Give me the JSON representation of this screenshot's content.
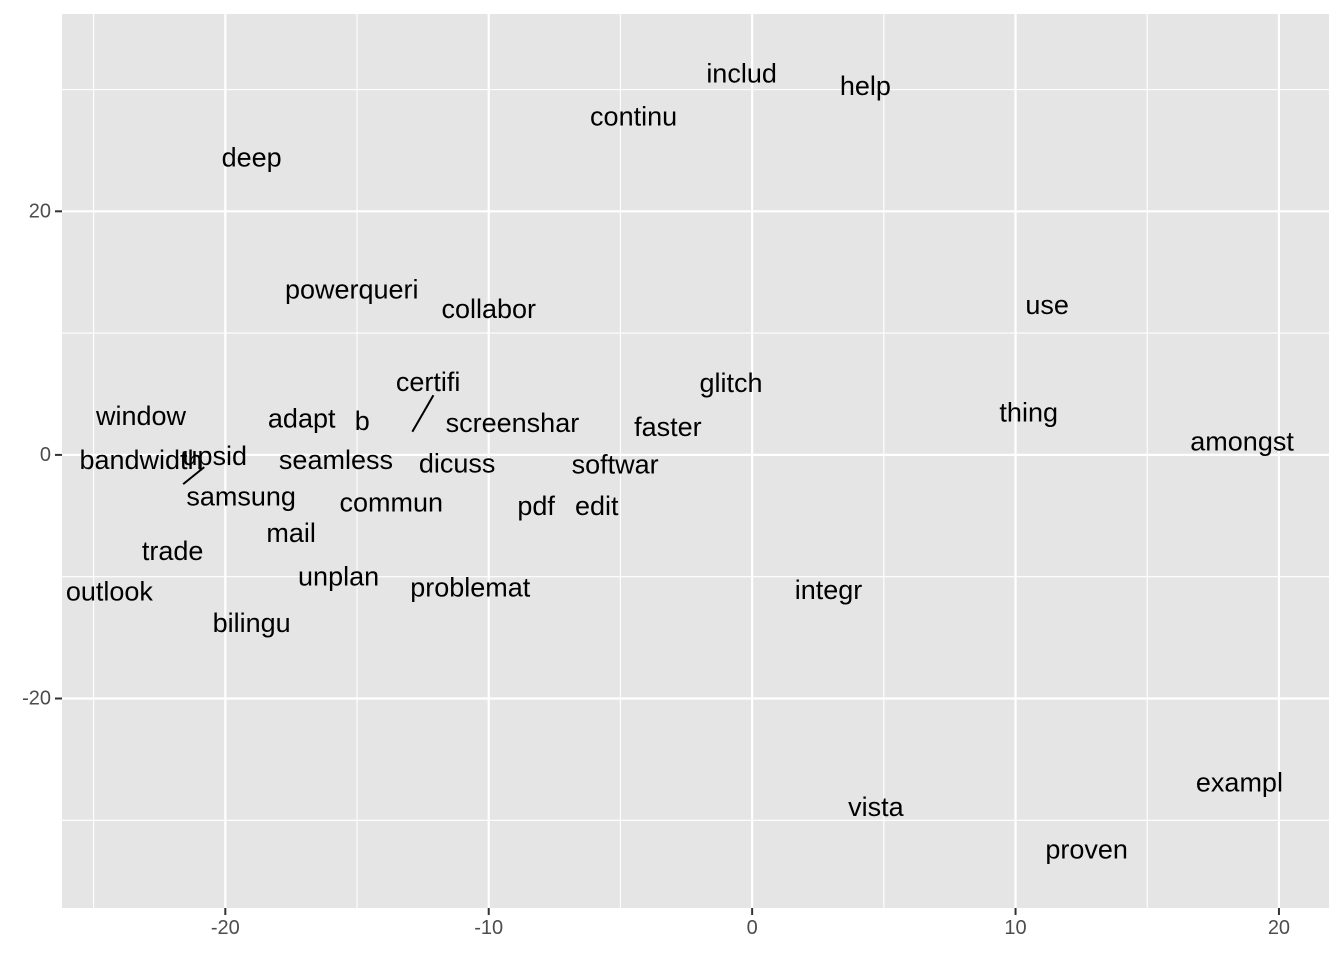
{
  "chart_data": {
    "type": "scatter",
    "title": "",
    "xlabel": "",
    "ylabel": "",
    "xlim": [
      -26.2,
      21.9
    ],
    "ylim": [
      -37.2,
      36.2
    ],
    "x_ticks": [
      -20,
      -10,
      0,
      10,
      20
    ],
    "x_tick_labels": [
      "-20",
      "-10",
      "0",
      "10",
      "20"
    ],
    "y_ticks": [
      -20,
      0,
      20
    ],
    "y_tick_labels": [
      "-20",
      "0",
      "20"
    ],
    "x_minor_ticks": [
      -25,
      -15,
      -5,
      5,
      15
    ],
    "y_minor_ticks": [
      -30,
      -10,
      10,
      30
    ],
    "grid": true,
    "background_color": "#e5e5e5",
    "grid_color": "#ffffff",
    "label_color": "#000000",
    "tick_color": "#4d4d4d",
    "points": [
      {
        "label": "includ",
        "x": -0.4,
        "y": 31.3
      },
      {
        "label": "help",
        "x": 4.3,
        "y": 30.3
      },
      {
        "label": "continu",
        "x": -4.5,
        "y": 27.8
      },
      {
        "label": "deep",
        "x": -19.0,
        "y": 24.4
      },
      {
        "label": "powerqueri",
        "x": -15.2,
        "y": 13.6
      },
      {
        "label": "collabor",
        "x": -10.0,
        "y": 12.0
      },
      {
        "label": "use",
        "x": 11.2,
        "y": 12.3
      },
      {
        "label": "certifi",
        "x": -12.3,
        "y": 6.0
      },
      {
        "label": "glitch",
        "x": -0.8,
        "y": 5.9
      },
      {
        "label": "window",
        "x": -23.2,
        "y": 3.2
      },
      {
        "label": "adapt",
        "x": -17.1,
        "y": 3.0
      },
      {
        "label": "b",
        "x": -14.8,
        "y": 2.8
      },
      {
        "label": "screenshar",
        "x": -9.1,
        "y": 2.6
      },
      {
        "label": "faster",
        "x": -3.2,
        "y": 2.3
      },
      {
        "label": "thing",
        "x": 10.5,
        "y": 3.5
      },
      {
        "label": "amongst",
        "x": 18.6,
        "y": 1.1
      },
      {
        "label": "bandwidth",
        "x": -23.2,
        "y": -0.4
      },
      {
        "label": "upsid",
        "x": -20.4,
        "y": -0.1
      },
      {
        "label": "seamless",
        "x": -15.8,
        "y": -0.4
      },
      {
        "label": "dicuss",
        "x": -11.2,
        "y": -0.7
      },
      {
        "label": "softwar",
        "x": -5.2,
        "y": -0.8
      },
      {
        "label": "samsung",
        "x": -19.4,
        "y": -3.4
      },
      {
        "label": "commun",
        "x": -13.7,
        "y": -3.9
      },
      {
        "label": "pdf",
        "x": -8.2,
        "y": -4.2
      },
      {
        "label": "edit",
        "x": -5.9,
        "y": -4.2
      },
      {
        "label": "mail",
        "x": -17.5,
        "y": -6.4
      },
      {
        "label": "trade",
        "x": -22.0,
        "y": -7.9
      },
      {
        "label": "unplan",
        "x": -15.7,
        "y": -10.0
      },
      {
        "label": "problemat",
        "x": -10.7,
        "y": -10.9
      },
      {
        "label": "integr",
        "x": 2.9,
        "y": -11.1
      },
      {
        "label": "outlook",
        "x": -24.4,
        "y": -11.2
      },
      {
        "label": "bilingu",
        "x": -19.0,
        "y": -13.8
      },
      {
        "label": "exampl",
        "x": 18.5,
        "y": -26.9
      },
      {
        "label": "vista",
        "x": 4.7,
        "y": -28.9
      },
      {
        "label": "proven",
        "x": 12.7,
        "y": -32.4
      }
    ],
    "repel_segments": [
      {
        "x1": -12.1,
        "y1": 4.9,
        "x2": -12.9,
        "y2": 1.9
      },
      {
        "x1": -20.8,
        "y1": -1.0,
        "x2": -21.6,
        "y2": -2.4
      }
    ]
  }
}
